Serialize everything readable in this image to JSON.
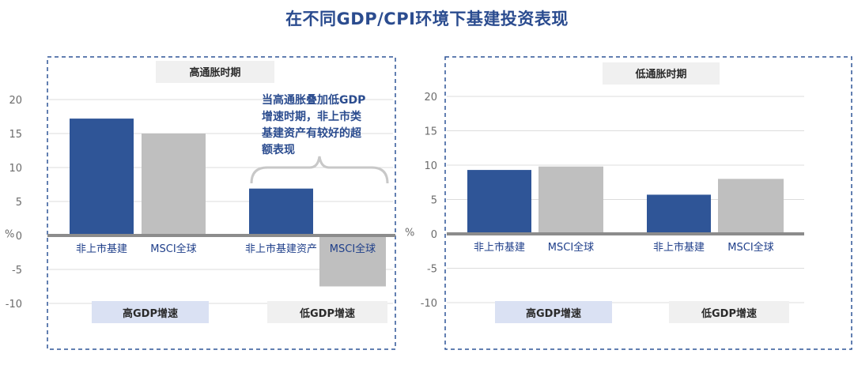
{
  "page_title": "在不同GDP/CPI环境下基建投资表现",
  "colors": {
    "title": "#2b4c8f",
    "primary_bar": "#2f5597",
    "secondary_bar": "#bfbfbf",
    "frame_border": "#2f5597",
    "zero_line": "#8c8c8c",
    "badge_high": "#dae1f3",
    "badge_low": "#f0f0f0"
  },
  "chart_data": [
    {
      "type": "bar",
      "panel_label": "高通胀时期",
      "unit": "%",
      "ylim": [
        -10,
        20
      ],
      "yticks": [
        20,
        15,
        10,
        5,
        0,
        -5,
        -10
      ],
      "groups": [
        {
          "name": "高GDP增速",
          "style": "high",
          "bars": [
            {
              "label": "非上市基建",
              "value": 17.2,
              "series": "primary"
            },
            {
              "label": "MSCI全球",
              "value": 15.0,
              "series": "secondary"
            }
          ]
        },
        {
          "name": "低GDP增速",
          "style": "low",
          "bars": [
            {
              "label": "非上市基建资产",
              "value": 6.9,
              "series": "primary"
            },
            {
              "label": "MSCI全球",
              "value": -7.5,
              "series": "secondary"
            }
          ]
        }
      ],
      "annotation": [
        "当高通胀叠加低GDP",
        "增速时期，非上市类",
        "基建资产有较好的超",
        "额表现"
      ]
    },
    {
      "type": "bar",
      "panel_label": "低通胀时期",
      "unit": "%",
      "ylim": [
        -10,
        20
      ],
      "yticks": [
        20,
        15,
        10,
        5,
        0,
        -5,
        -10
      ],
      "groups": [
        {
          "name": "高GDP增速",
          "style": "high",
          "bars": [
            {
              "label": "非上市基建",
              "value": 9.3,
              "series": "primary"
            },
            {
              "label": "MSCI全球",
              "value": 9.8,
              "series": "secondary"
            }
          ]
        },
        {
          "name": "低GDP增速",
          "style": "low",
          "bars": [
            {
              "label": "非上市基建",
              "value": 5.7,
              "series": "primary"
            },
            {
              "label": "MSCI全球",
              "value": 8.0,
              "series": "secondary"
            }
          ]
        }
      ]
    }
  ]
}
